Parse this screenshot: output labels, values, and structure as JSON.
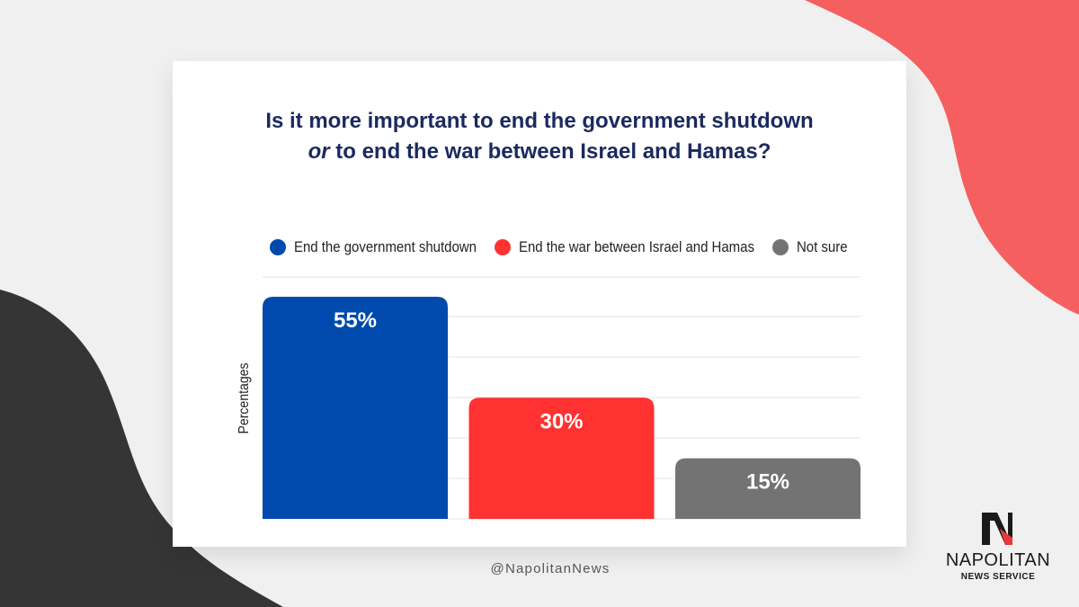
{
  "colors": {
    "background": "#f0f0f0",
    "accent_shape": "#f55f5f",
    "dark_shape": "#353535",
    "title": "#1b2a5e",
    "gridline": "#e3e3e3"
  },
  "chart_data": {
    "type": "bar",
    "title": {
      "line1": "Is it more important to end the government shutdown",
      "line2_italic": "or",
      "line2_rest": " to end the war between Israel and Hamas?"
    },
    "ylabel": "Percentages",
    "xlabel": "",
    "ylim": [
      0,
      55
    ],
    "grid": true,
    "legend_position": "top",
    "categories": [
      "End the government shutdown",
      "End the war between Israel and Hamas",
      "Not sure"
    ],
    "values": [
      55,
      30,
      15
    ],
    "value_labels": [
      "55%",
      "30%",
      "15%"
    ],
    "colors": [
      "#004aad",
      "#ff3131",
      "#737373"
    ]
  },
  "footer": {
    "handle": "@NapolitanNews"
  },
  "logo": {
    "name": "NAPOLITAN",
    "subtitle": "NEWS SERVICE",
    "icon": "napolitan-n-logo"
  }
}
